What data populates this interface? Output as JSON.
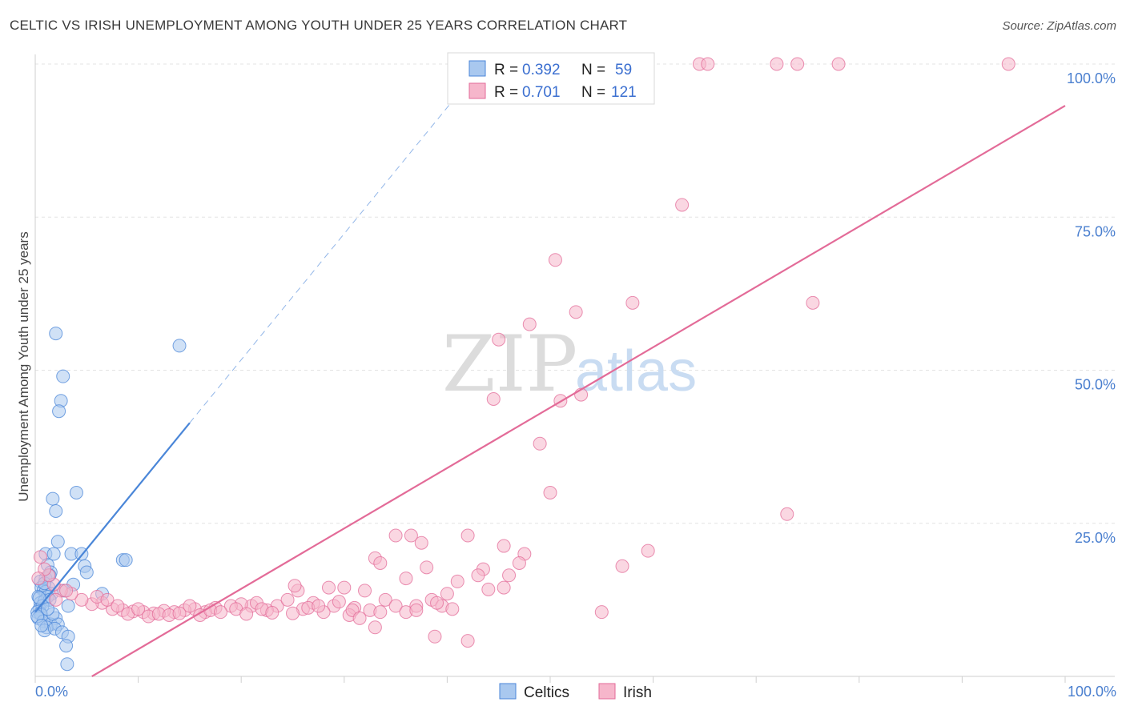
{
  "title": "CELTIC VS IRISH UNEMPLOYMENT AMONG YOUTH UNDER 25 YEARS CORRELATION CHART",
  "source": "Source: ZipAtlas.com",
  "watermark": {
    "zip": "ZIP",
    "atlas": "atlas"
  },
  "chart_data": {
    "type": "scatter",
    "ylabel": "Unemployment Among Youth under 25 years",
    "xlim": [
      0,
      100
    ],
    "ylim": [
      0,
      100
    ],
    "x_tick_labels": [
      "0.0%",
      "100.0%"
    ],
    "y_ticks": [
      25,
      50,
      75,
      100
    ],
    "y_tick_labels": [
      "25.0%",
      "50.0%",
      "75.0%",
      "100.0%"
    ],
    "grid": true,
    "legend_position": "top-center",
    "bottom_legend": [
      "Celtics",
      "Irish"
    ],
    "stats": [
      {
        "r_label": "R = ",
        "r": "0.392",
        "n_label": "N = ",
        "n": "59"
      },
      {
        "r_label": "R = ",
        "r": "0.701",
        "n_label": "N = ",
        "n": "121"
      }
    ],
    "series": [
      {
        "name": "Celtics",
        "color": "#4a86d8",
        "fill": "#a9c8ef",
        "trend": {
          "x0": 0,
          "y0": 10.5,
          "x1": 15,
          "y1": 41.4,
          "dash_to_x": 43
        },
        "points": [
          [
            2.0,
            56.0
          ],
          [
            14.0,
            54.0
          ],
          [
            2.7,
            49.0
          ],
          [
            2.5,
            45.0
          ],
          [
            2.3,
            43.3
          ],
          [
            4.0,
            30.0
          ],
          [
            1.7,
            29.0
          ],
          [
            2.0,
            27.0
          ],
          [
            2.2,
            22.0
          ],
          [
            1.0,
            20.0
          ],
          [
            1.8,
            20.0
          ],
          [
            3.5,
            20.0
          ],
          [
            4.5,
            20.0
          ],
          [
            8.5,
            19.0
          ],
          [
            8.8,
            19.0
          ],
          [
            1.2,
            18.2
          ],
          [
            4.8,
            18.0
          ],
          [
            1.5,
            17.0
          ],
          [
            5.0,
            17.0
          ],
          [
            1.0,
            16.0
          ],
          [
            0.5,
            15.5
          ],
          [
            3.7,
            15.0
          ],
          [
            0.6,
            14.5
          ],
          [
            1.3,
            14.5
          ],
          [
            0.8,
            14.0
          ],
          [
            1.0,
            13.8
          ],
          [
            0.3,
            13.0
          ],
          [
            1.6,
            13.5
          ],
          [
            6.5,
            13.5
          ],
          [
            1.2,
            13.0
          ],
          [
            0.5,
            12.0
          ],
          [
            0.9,
            12.3
          ],
          [
            1.4,
            12.5
          ],
          [
            0.4,
            11.0
          ],
          [
            0.7,
            11.5
          ],
          [
            3.2,
            11.5
          ],
          [
            0.2,
            10.5
          ],
          [
            0.5,
            10.3
          ],
          [
            0.6,
            10.0
          ],
          [
            0.3,
            9.5
          ],
          [
            2.0,
            9.5
          ],
          [
            0.8,
            9.0
          ],
          [
            1.5,
            8.5
          ],
          [
            2.2,
            8.5
          ],
          [
            1.1,
            8.0
          ],
          [
            0.9,
            7.5
          ],
          [
            1.9,
            7.8
          ],
          [
            2.6,
            7.2
          ],
          [
            3.2,
            6.5
          ],
          [
            3.0,
            5.0
          ],
          [
            3.1,
            2.0
          ],
          [
            0.4,
            12.8
          ],
          [
            0.9,
            15.2
          ],
          [
            1.7,
            10.2
          ],
          [
            0.2,
            9.8
          ],
          [
            2.8,
            14.0
          ],
          [
            1.2,
            11.0
          ],
          [
            0.6,
            8.3
          ],
          [
            1.4,
            16.5
          ]
        ]
      },
      {
        "name": "Irish",
        "color": "#e36b98",
        "fill": "#f6b6cb",
        "trend": {
          "x0": 5.5,
          "y0": 0,
          "x1": 100,
          "y1": 93.2
        },
        "points": [
          [
            48.5,
            100
          ],
          [
            48.9,
            100
          ],
          [
            55,
            100
          ],
          [
            57,
            100
          ],
          [
            64.5,
            100
          ],
          [
            65.3,
            100
          ],
          [
            72,
            100
          ],
          [
            74,
            100
          ],
          [
            78,
            100
          ],
          [
            94.5,
            100
          ],
          [
            62.8,
            77
          ],
          [
            50.5,
            68
          ],
          [
            52.5,
            59.5
          ],
          [
            58,
            61
          ],
          [
            75.5,
            61
          ],
          [
            48,
            57.5
          ],
          [
            45,
            55
          ],
          [
            53,
            46
          ],
          [
            44.5,
            45.3
          ],
          [
            51,
            45
          ],
          [
            49,
            38
          ],
          [
            50,
            30
          ],
          [
            73,
            26.5
          ],
          [
            35,
            23
          ],
          [
            36.5,
            23
          ],
          [
            42,
            23
          ],
          [
            37.5,
            21.8
          ],
          [
            45.5,
            21.3
          ],
          [
            59.5,
            20.5
          ],
          [
            33,
            19.3
          ],
          [
            47.5,
            20
          ],
          [
            33.5,
            18.5
          ],
          [
            47,
            18.5
          ],
          [
            38,
            17.8
          ],
          [
            57,
            18
          ],
          [
            43.5,
            17.5
          ],
          [
            43,
            16.5
          ],
          [
            36,
            16
          ],
          [
            41,
            15.5
          ],
          [
            45.5,
            14.5
          ],
          [
            28.5,
            14.5
          ],
          [
            30,
            14.5
          ],
          [
            32,
            14
          ],
          [
            25.5,
            14
          ],
          [
            40,
            13.5
          ],
          [
            34,
            12.5
          ],
          [
            38.5,
            12.5
          ],
          [
            35,
            11.5
          ],
          [
            37,
            11.5
          ],
          [
            39.5,
            11.5
          ],
          [
            27,
            12
          ],
          [
            29,
            11.5
          ],
          [
            31,
            11.2
          ],
          [
            23.5,
            11.5
          ],
          [
            26,
            11
          ],
          [
            28,
            10.5
          ],
          [
            30.5,
            10
          ],
          [
            32.5,
            10.8
          ],
          [
            33.5,
            10.5
          ],
          [
            22.5,
            10.8
          ],
          [
            21,
            11.5
          ],
          [
            21.5,
            12
          ],
          [
            20,
            11.8
          ],
          [
            19,
            11.5
          ],
          [
            17.5,
            11.2
          ],
          [
            16.5,
            10.5
          ],
          [
            15.5,
            11
          ],
          [
            14.5,
            10.8
          ],
          [
            13.5,
            10.5
          ],
          [
            12.5,
            10.7
          ],
          [
            11.5,
            10.3
          ],
          [
            10.5,
            10.5
          ],
          [
            9.5,
            10.6
          ],
          [
            8.5,
            10.8
          ],
          [
            7.5,
            11
          ],
          [
            6.5,
            12
          ],
          [
            5.5,
            11.8
          ],
          [
            4.5,
            12.5
          ],
          [
            3.5,
            13.5
          ],
          [
            2.5,
            14
          ],
          [
            1.8,
            15
          ],
          [
            1.3,
            16.5
          ],
          [
            0.9,
            17.5
          ],
          [
            0.5,
            19.5
          ],
          [
            0.3,
            16
          ],
          [
            2.0,
            12.5
          ],
          [
            3.0,
            14
          ],
          [
            6.0,
            13
          ],
          [
            7.0,
            12.5
          ],
          [
            8.0,
            11.5
          ],
          [
            9.0,
            10.2
          ],
          [
            10.0,
            11
          ],
          [
            11.0,
            9.8
          ],
          [
            12.0,
            10.2
          ],
          [
            13.0,
            10
          ],
          [
            14.0,
            10.3
          ],
          [
            15.0,
            11.5
          ],
          [
            16.0,
            10
          ],
          [
            17.0,
            10.8
          ],
          [
            18.0,
            10.5
          ],
          [
            19.5,
            11
          ],
          [
            20.5,
            10.2
          ],
          [
            22.0,
            11
          ],
          [
            23.0,
            10.4
          ],
          [
            24.5,
            12.5
          ],
          [
            25.0,
            10.3
          ],
          [
            26.5,
            11.2
          ],
          [
            27.5,
            11.5
          ],
          [
            29.5,
            12.2
          ],
          [
            30.8,
            10.8
          ],
          [
            31.5,
            9.5
          ],
          [
            33.0,
            8
          ],
          [
            36.0,
            10.5
          ],
          [
            37.0,
            10.8
          ],
          [
            38.8,
            6.5
          ],
          [
            39.0,
            12
          ],
          [
            40.5,
            11
          ],
          [
            42.0,
            5.8
          ],
          [
            55.0,
            10.5
          ],
          [
            44.0,
            14.2
          ],
          [
            46.0,
            16.5
          ],
          [
            25.2,
            14.8
          ]
        ]
      }
    ]
  }
}
